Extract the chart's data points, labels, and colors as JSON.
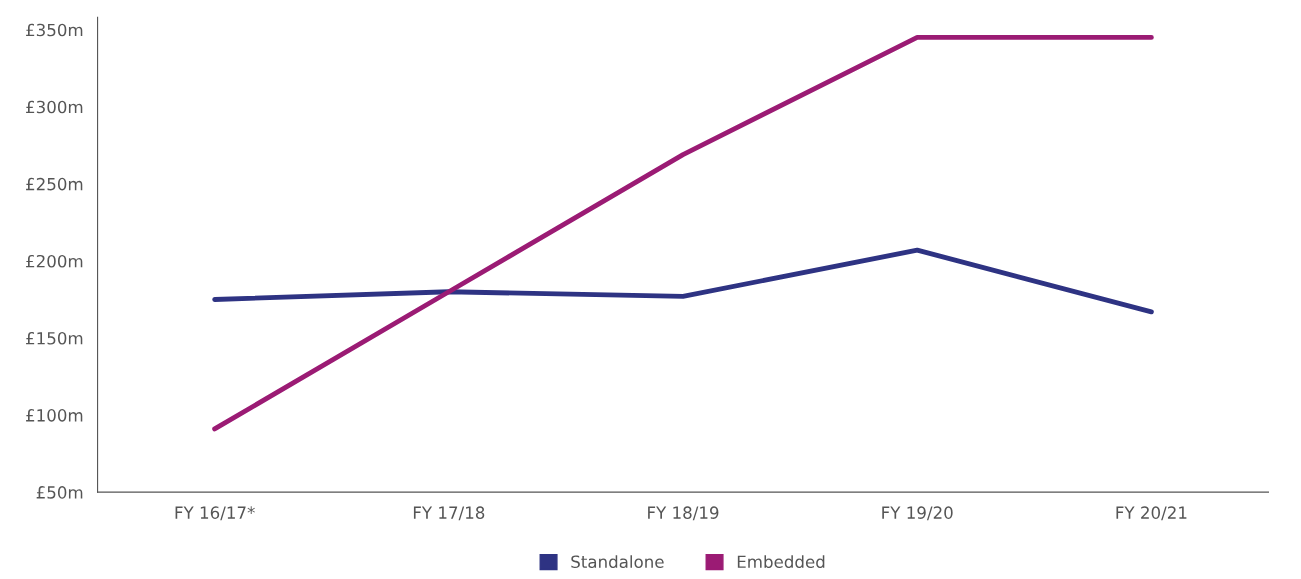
{
  "chart_data": {
    "type": "line",
    "categories": [
      "FY 16/17*",
      "FY 17/18",
      "FY 18/19",
      "FY 19/20",
      "FY 20/21"
    ],
    "series": [
      {
        "name": "Standalone",
        "color": "#2e3383",
        "values": [
          175,
          180,
          177,
          207,
          167
        ]
      },
      {
        "name": "Embedded",
        "color": "#9b1b74",
        "values": [
          91,
          180,
          269,
          345,
          345
        ]
      }
    ],
    "ylim": [
      50,
      358
    ],
    "yticks": [
      {
        "value": 50,
        "label": "£50m"
      },
      {
        "value": 100,
        "label": "£100m"
      },
      {
        "value": 150,
        "label": "£150m"
      },
      {
        "value": 200,
        "label": "£200m"
      },
      {
        "value": 250,
        "label": "£250m"
      },
      {
        "value": 300,
        "label": "£300m"
      },
      {
        "value": 350,
        "label": "£350m"
      }
    ],
    "grid": false,
    "legend": "bottom",
    "marker": "none",
    "line_style": "solid"
  }
}
